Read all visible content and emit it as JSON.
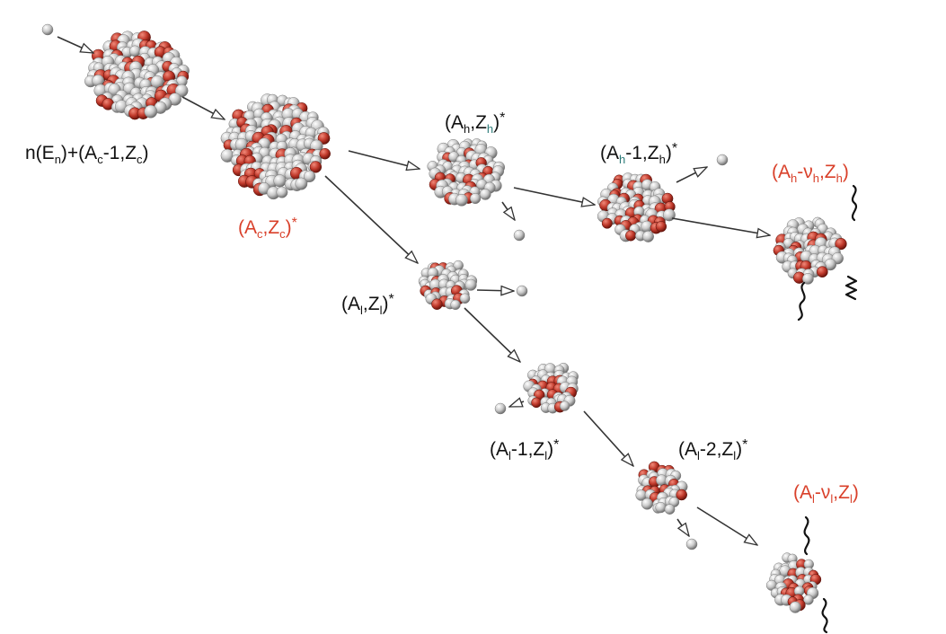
{
  "labels": {
    "compound_state": {
      "p1": "n(E",
      "s1": "n",
      "p2": ")+(A",
      "s2": "c",
      "p3": "-1,Z",
      "s3": "c",
      "p4": ")"
    },
    "compound_nucleus": {
      "p1": "(A",
      "s1": "c",
      "p2": ",Z",
      "s2": "c",
      "p3": ")",
      "star": "*"
    },
    "heavy_fragment": {
      "p1": "(A",
      "s1": "h",
      "p2": ",Z",
      "s2": "h",
      "p3": ")",
      "star": "*"
    },
    "heavy_minus_one": {
      "p1": "(A",
      "s1": "h",
      "p2": "-1,Z",
      "s2": "h",
      "p3": ")",
      "star": "*"
    },
    "heavy_final": {
      "p1": "(A",
      "s1": "h",
      "p2": "-ν",
      "s2": "h",
      "p3": ",Z",
      "s3": "h",
      "p4": ")"
    },
    "light_fragment": {
      "p1": "(A",
      "s1": "l",
      "p2": ",Z",
      "s2": "l",
      "p3": ")",
      "star": "*"
    },
    "light_minus_one": {
      "p1": "(A",
      "s1": "l",
      "p2": "-1,Z",
      "s2": "l",
      "p3": ")",
      "star": "*"
    },
    "light_minus_two": {
      "p1": "(A",
      "s1": "l",
      "p2": "-2,Z",
      "s2": "l",
      "p3": ")",
      "star": "*"
    },
    "light_final": {
      "p1": "(A",
      "s1": "l",
      "p2": "-ν",
      "s2": "l",
      "p3": ",Z",
      "s3": "l",
      "p4": ")"
    }
  },
  "colors": {
    "proton": "#c0392b",
    "neutron": "#c8c8c8",
    "label_highlight": "#d9402a",
    "arrow": "#333333"
  }
}
